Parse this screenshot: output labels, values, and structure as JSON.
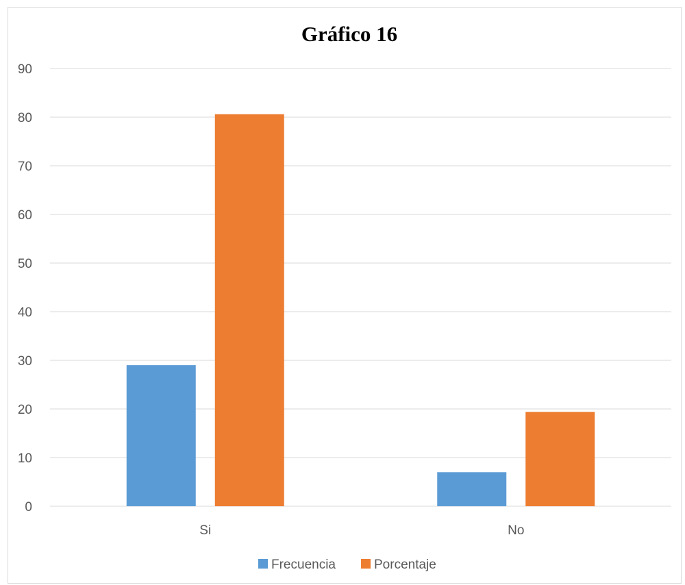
{
  "chart_data": {
    "type": "bar",
    "title": "Gráfico 16",
    "xlabel": "",
    "ylabel": "",
    "categories": [
      "Si",
      "No"
    ],
    "series": [
      {
        "name": "Frecuencia",
        "values": [
          29,
          7
        ],
        "color": "#5b9bd5"
      },
      {
        "name": "Porcentaje",
        "values": [
          80.6,
          19.4
        ],
        "color": "#ed7d31"
      }
    ],
    "ylim": [
      0,
      90
    ],
    "yticks": [
      0,
      10,
      20,
      30,
      40,
      50,
      60,
      70,
      80,
      90
    ],
    "grid": true,
    "gridline_color": "#d9d9d9",
    "legend_position": "bottom"
  }
}
